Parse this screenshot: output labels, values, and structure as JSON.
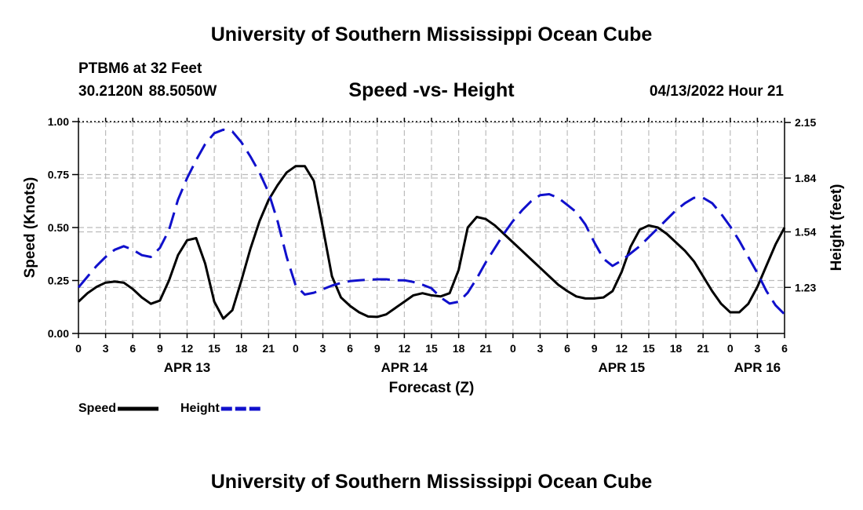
{
  "header": {
    "title": "University of Southern Mississippi Ocean Cube",
    "station": "PTBM6 at 32 Feet",
    "coords": "30.2120N  88.5050W",
    "subtitle": "Speed -vs- Height",
    "datestamp": "04/13/2022 Hour 21"
  },
  "footer": {
    "title": "University of Southern Mississippi Ocean Cube"
  },
  "colors": {
    "speed": "#000000",
    "height": "#1010cc",
    "grid": "#bbbbbb"
  },
  "chart_data": {
    "type": "line",
    "xlabel": "Forecast (Z)",
    "ylabel": "Speed (Knots)",
    "y2label": "Height (feet)",
    "grid": true,
    "legend_position": "bottom-left",
    "x_range": [
      0,
      78
    ],
    "x_ticks": [
      0,
      3,
      6,
      9,
      12,
      15,
      18,
      21,
      24,
      27,
      30,
      33,
      36,
      39,
      42,
      45,
      48,
      51,
      54,
      57,
      60,
      63,
      66,
      69,
      72,
      75,
      78
    ],
    "x_tick_labels": [
      "0",
      "3",
      "6",
      "9",
      "12",
      "15",
      "18",
      "21",
      "0",
      "3",
      "6",
      "9",
      "12",
      "15",
      "18",
      "21",
      "0",
      "3",
      "6",
      "9",
      "12",
      "15",
      "18",
      "21",
      "0",
      "3",
      "6"
    ],
    "day_labels": [
      {
        "x": 12,
        "label": "APR 13"
      },
      {
        "x": 36,
        "label": "APR 14"
      },
      {
        "x": 60,
        "label": "APR 15"
      },
      {
        "x": 75,
        "label": "APR 16"
      }
    ],
    "ylim": [
      0,
      1
    ],
    "y_ticks": [
      0,
      0.25,
      0.5,
      0.75,
      1.0
    ],
    "y_tick_labels": [
      "0.00",
      "0.25",
      "0.50",
      "0.75",
      "1.00"
    ],
    "y2lim": [
      0.973,
      2.155
    ],
    "y2_ticks": [
      1.23,
      1.54,
      1.84,
      2.15
    ],
    "y2_tick_labels": [
      "1.23",
      "1.54",
      "1.84",
      "2.15"
    ],
    "series": [
      {
        "name": "Speed",
        "axis": "left",
        "style": "solid",
        "x": [
          0,
          1,
          2,
          3,
          4,
          5,
          6,
          7,
          8,
          9,
          10,
          11,
          12,
          13,
          14,
          15,
          16,
          17,
          18,
          19,
          20,
          21,
          22,
          23,
          24,
          25,
          26,
          27,
          28,
          29,
          30,
          31,
          32,
          33,
          34,
          35,
          36,
          37,
          38,
          39,
          40,
          41,
          42,
          43,
          44,
          45,
          46,
          47,
          48,
          49,
          50,
          51,
          52,
          53,
          54,
          55,
          56,
          57,
          58,
          59,
          60,
          61,
          62,
          63,
          64,
          65,
          66,
          67,
          68,
          69,
          70,
          71,
          72,
          73,
          74,
          75,
          76,
          77,
          78
        ],
        "values": [
          0.15,
          0.19,
          0.22,
          0.24,
          0.245,
          0.24,
          0.21,
          0.17,
          0.14,
          0.155,
          0.25,
          0.37,
          0.44,
          0.45,
          0.33,
          0.15,
          0.07,
          0.11,
          0.25,
          0.4,
          0.53,
          0.63,
          0.7,
          0.76,
          0.79,
          0.79,
          0.72,
          0.5,
          0.27,
          0.17,
          0.13,
          0.1,
          0.08,
          0.078,
          0.09,
          0.12,
          0.15,
          0.18,
          0.19,
          0.18,
          0.175,
          0.19,
          0.3,
          0.5,
          0.55,
          0.54,
          0.51,
          0.47,
          0.43,
          0.39,
          0.35,
          0.31,
          0.27,
          0.23,
          0.2,
          0.175,
          0.165,
          0.165,
          0.17,
          0.2,
          0.29,
          0.41,
          0.49,
          0.51,
          0.5,
          0.47,
          0.43,
          0.39,
          0.34,
          0.27,
          0.2,
          0.14,
          0.1,
          0.1,
          0.14,
          0.22,
          0.32,
          0.42,
          0.5
        ]
      },
      {
        "name": "Height",
        "axis": "right",
        "style": "dashed",
        "x": [
          0,
          1,
          2,
          3,
          4,
          5,
          6,
          7,
          8,
          9,
          10,
          11,
          12,
          13,
          14,
          15,
          16,
          17,
          18,
          19,
          20,
          21,
          22,
          23,
          24,
          25,
          26,
          27,
          28,
          29,
          30,
          31,
          32,
          33,
          34,
          35,
          36,
          37,
          38,
          39,
          40,
          41,
          42,
          43,
          44,
          45,
          46,
          47,
          48,
          49,
          50,
          51,
          52,
          53,
          54,
          55,
          56,
          57,
          58,
          59,
          60,
          61,
          62,
          63,
          64,
          65,
          66,
          67,
          68,
          69,
          70,
          71,
          72,
          73,
          74,
          75,
          76,
          77,
          78
        ],
        "values": [
          1.23,
          1.29,
          1.35,
          1.4,
          1.44,
          1.46,
          1.44,
          1.41,
          1.4,
          1.45,
          1.55,
          1.72,
          1.84,
          1.94,
          2.03,
          2.09,
          2.11,
          2.1,
          2.04,
          1.96,
          1.87,
          1.76,
          1.6,
          1.4,
          1.24,
          1.19,
          1.2,
          1.22,
          1.24,
          1.255,
          1.265,
          1.27,
          1.273,
          1.275,
          1.275,
          1.27,
          1.27,
          1.26,
          1.245,
          1.225,
          1.175,
          1.14,
          1.15,
          1.2,
          1.28,
          1.37,
          1.45,
          1.53,
          1.6,
          1.66,
          1.71,
          1.745,
          1.75,
          1.73,
          1.69,
          1.65,
          1.58,
          1.48,
          1.39,
          1.35,
          1.38,
          1.42,
          1.46,
          1.51,
          1.56,
          1.61,
          1.66,
          1.7,
          1.73,
          1.73,
          1.7,
          1.64,
          1.57,
          1.49,
          1.4,
          1.31,
          1.21,
          1.13,
          1.08
        ]
      }
    ]
  }
}
